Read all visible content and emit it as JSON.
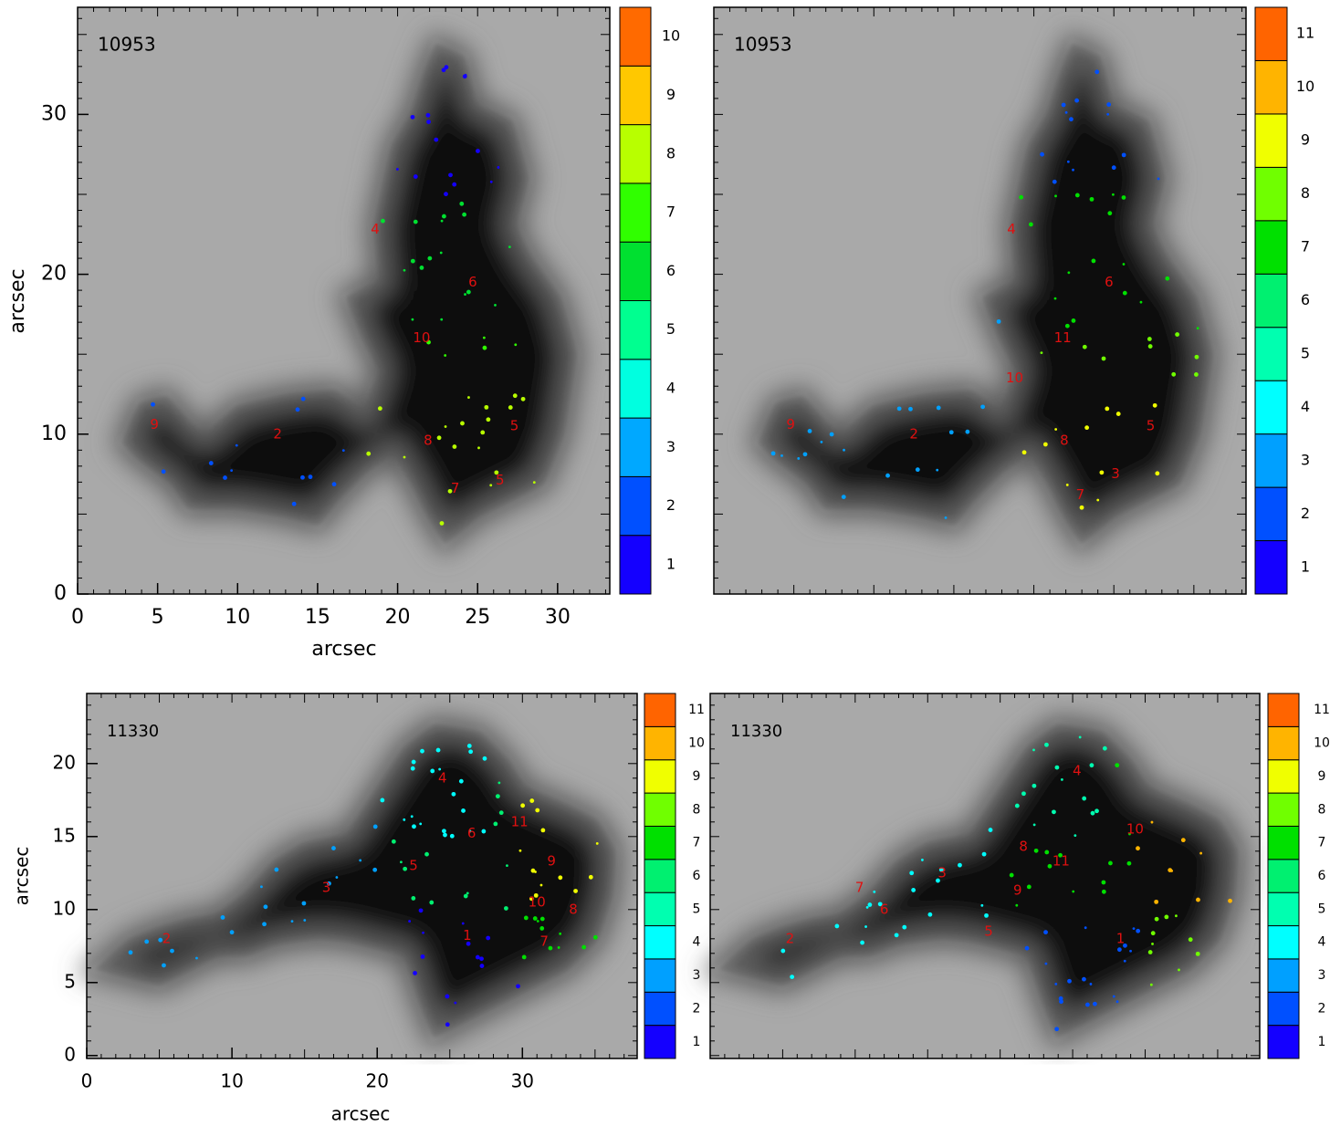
{
  "chart_data": [
    {
      "type": "image",
      "title": "10953",
      "xlabel": "arcsec",
      "ylabel": "arcsec",
      "xlim": [
        0,
        33.26
      ],
      "ylim": [
        0,
        36.7
      ],
      "xticks": [
        0,
        5,
        10,
        15,
        20,
        25,
        30
      ],
      "yticks": [
        0,
        10,
        20,
        30
      ],
      "colorbar": {
        "levels": [
          1,
          2,
          3,
          4,
          5,
          6,
          7,
          8,
          9,
          10
        ],
        "colors": [
          "#1400ff",
          "#0050ff",
          "#00a8ff",
          "#00ffe0",
          "#00ff90",
          "#00e030",
          "#30ff00",
          "#b8ff00",
          "#ffc800",
          "#ff6a00"
        ]
      },
      "annotations": [
        {
          "text": "9",
          "x": 4.8,
          "y": 10.6
        },
        {
          "text": "2",
          "x": 12.5,
          "y": 10
        },
        {
          "text": "4",
          "x": 18.6,
          "y": 22.8
        },
        {
          "text": "10",
          "x": 21.5,
          "y": 16
        },
        {
          "text": "8",
          "x": 21.9,
          "y": 9.6
        },
        {
          "text": "6",
          "x": 24.7,
          "y": 19.5
        },
        {
          "text": "7",
          "x": 23.6,
          "y": 6.6
        },
        {
          "text": "5",
          "x": 27.3,
          "y": 10.5
        },
        {
          "text": "5",
          "x": 26.4,
          "y": 7.1
        }
      ]
    },
    {
      "type": "image",
      "title": "10953",
      "xlim": [
        0,
        33.26
      ],
      "ylim": [
        0,
        36.7
      ],
      "colorbar": {
        "levels": [
          1,
          2,
          3,
          4,
          5,
          6,
          7,
          8,
          9,
          10,
          11
        ],
        "colors": [
          "#1400ff",
          "#0050ff",
          "#00a0ff",
          "#00ffff",
          "#00ffb0",
          "#00f070",
          "#00e000",
          "#70ff00",
          "#f0ff00",
          "#ffb400",
          "#ff6400"
        ]
      },
      "annotations": [
        {
          "text": "9",
          "x": 4.8,
          "y": 10.6
        },
        {
          "text": "2",
          "x": 12.5,
          "y": 10
        },
        {
          "text": "4",
          "x": 18.6,
          "y": 22.8
        },
        {
          "text": "10",
          "x": 18.8,
          "y": 13.5
        },
        {
          "text": "11",
          "x": 21.8,
          "y": 16
        },
        {
          "text": "8",
          "x": 21.9,
          "y": 9.6
        },
        {
          "text": "6",
          "x": 24.7,
          "y": 19.5
        },
        {
          "text": "3",
          "x": 25.1,
          "y": 7.5
        },
        {
          "text": "7",
          "x": 22.9,
          "y": 6.2
        },
        {
          "text": "5",
          "x": 27.3,
          "y": 10.5
        }
      ]
    },
    {
      "type": "image",
      "title": "11330",
      "xlabel": "arcsec",
      "ylabel": "arcsec",
      "xlim": [
        0,
        37.9
      ],
      "ylim": [
        -0.2,
        24.8
      ],
      "xticks": [
        0,
        10,
        20,
        30
      ],
      "yticks": [
        0,
        5,
        10,
        15,
        20
      ],
      "colorbar": {
        "levels": [
          1,
          2,
          3,
          4,
          5,
          6,
          7,
          8,
          9,
          10,
          11
        ],
        "colors": [
          "#1400ff",
          "#0050ff",
          "#00a0ff",
          "#00ffff",
          "#00ffb0",
          "#00f070",
          "#00e000",
          "#70ff00",
          "#f0ff00",
          "#ffb400",
          "#ff6400"
        ]
      },
      "annotations": [
        {
          "text": "2",
          "x": 5.5,
          "y": 8
        },
        {
          "text": "3",
          "x": 16.5,
          "y": 11.5
        },
        {
          "text": "5",
          "x": 22.5,
          "y": 13
        },
        {
          "text": "4",
          "x": 24.5,
          "y": 19
        },
        {
          "text": "6",
          "x": 26.5,
          "y": 15.2
        },
        {
          "text": "11",
          "x": 29.8,
          "y": 16
        },
        {
          "text": "9",
          "x": 32,
          "y": 13.3
        },
        {
          "text": "10",
          "x": 31,
          "y": 10.5
        },
        {
          "text": "8",
          "x": 33.5,
          "y": 10
        },
        {
          "text": "1",
          "x": 26.2,
          "y": 8.2
        },
        {
          "text": "7",
          "x": 31.5,
          "y": 7.8
        }
      ]
    },
    {
      "type": "image",
      "title": "11330",
      "xlim": [
        0,
        37.9
      ],
      "ylim": [
        -0.2,
        24.8
      ],
      "colorbar": {
        "levels": [
          1,
          2,
          3,
          4,
          5,
          6,
          7,
          8,
          9,
          10,
          11
        ],
        "colors": [
          "#1400ff",
          "#0050ff",
          "#00a0ff",
          "#00ffff",
          "#00ffb0",
          "#00f070",
          "#00e000",
          "#70ff00",
          "#f0ff00",
          "#ffb400",
          "#ff6400"
        ]
      },
      "annotations": [
        {
          "text": "2",
          "x": 5.5,
          "y": 8
        },
        {
          "text": "7",
          "x": 10.3,
          "y": 11.5
        },
        {
          "text": "6",
          "x": 12,
          "y": 10
        },
        {
          "text": "3",
          "x": 16,
          "y": 12.5
        },
        {
          "text": "5",
          "x": 19.2,
          "y": 8.5
        },
        {
          "text": "4",
          "x": 25.3,
          "y": 19.5
        },
        {
          "text": "8",
          "x": 21.6,
          "y": 14.3
        },
        {
          "text": "11",
          "x": 24.2,
          "y": 13.3
        },
        {
          "text": "9",
          "x": 21.2,
          "y": 11.3
        },
        {
          "text": "10",
          "x": 29.3,
          "y": 15.5
        },
        {
          "text": "1",
          "x": 28.3,
          "y": 8
        }
      ]
    }
  ]
}
